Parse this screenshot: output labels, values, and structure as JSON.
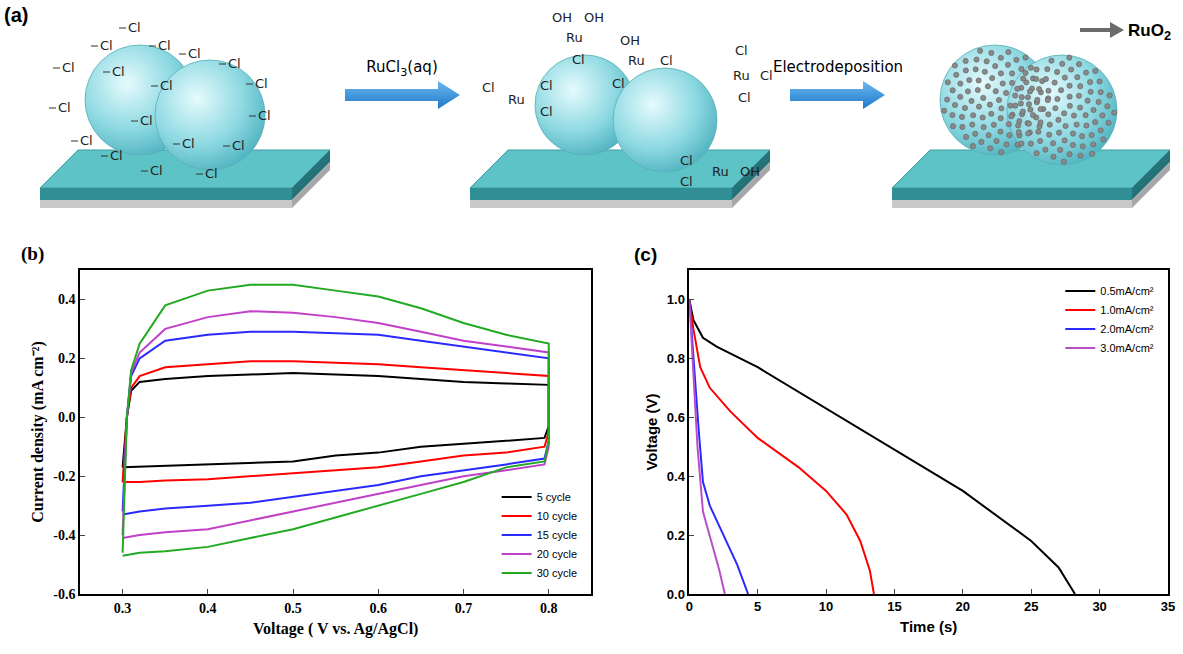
{
  "figure_a": {
    "label": "(a)",
    "stage1": {
      "labels": [
        "Cl",
        "Cl",
        "Cl",
        "Cl",
        "Cl",
        "Cl",
        "Cl",
        "Cl",
        "Cl",
        "Cl",
        "Cl",
        "Cl",
        "Cl",
        "Cl",
        "Cl",
        "Cl",
        "Cl",
        "Cl"
      ]
    },
    "stage2": {
      "labels": [
        "OH",
        "OH",
        "Ru",
        "Cl",
        "OH",
        "Ru",
        "Cl",
        "Cl",
        "Ru",
        "Cl",
        "Cl",
        "Cl",
        "Cl",
        "Ru",
        "Cl",
        "Cl",
        "Cl",
        "Cl",
        "Ru",
        "OH"
      ]
    },
    "stage3": {
      "label": "RuO2"
    },
    "arrows": [
      "RuCl3(aq)",
      "Electrodeposition"
    ]
  },
  "chart_data": [
    {
      "type": "line",
      "panel_label": "(b)",
      "x_label": "Voltage ( V vs. Ag/AgCl)",
      "y_label": "Current density (mA cm⁻²)",
      "xlim": [
        0.25,
        0.85
      ],
      "xticks": [
        0.3,
        0.4,
        0.5,
        0.6,
        0.7,
        0.8
      ],
      "ylim": [
        -0.6,
        0.5
      ],
      "yticks": [
        -0.6,
        -0.4,
        -0.2,
        {
          "value": 0,
          "label": "0.0"
        },
        0.2,
        0.4
      ],
      "grid": false,
      "legend": "bottom right",
      "series": [
        {
          "name": "5 cycle",
          "color": "#000000",
          "x": [
            0.3,
            0.305,
            0.31,
            0.32,
            0.35,
            0.4,
            0.45,
            0.5,
            0.55,
            0.6,
            0.65,
            0.7,
            0.75,
            0.8,
            0.8,
            0.795,
            0.75,
            0.7,
            0.65,
            0.6,
            0.55,
            0.5,
            0.45,
            0.4,
            0.35,
            0.32,
            0.3
          ],
          "values": [
            -0.17,
            0.0,
            0.09,
            0.12,
            0.13,
            0.14,
            0.145,
            0.15,
            0.145,
            0.14,
            0.13,
            0.12,
            0.115,
            0.11,
            -0.03,
            -0.07,
            -0.08,
            -0.09,
            -0.1,
            -0.12,
            -0.13,
            -0.15,
            -0.155,
            -0.16,
            -0.165,
            -0.17,
            -0.17
          ]
        },
        {
          "name": "10 cycle",
          "color": "#ff0000",
          "x": [
            0.3,
            0.305,
            0.31,
            0.32,
            0.35,
            0.4,
            0.45,
            0.5,
            0.55,
            0.6,
            0.65,
            0.7,
            0.75,
            0.8,
            0.8,
            0.795,
            0.75,
            0.7,
            0.65,
            0.6,
            0.55,
            0.5,
            0.45,
            0.4,
            0.35,
            0.32,
            0.3
          ],
          "values": [
            -0.22,
            0.0,
            0.1,
            0.14,
            0.17,
            0.18,
            0.19,
            0.19,
            0.185,
            0.18,
            0.17,
            0.16,
            0.15,
            0.14,
            -0.05,
            -0.1,
            -0.12,
            -0.13,
            -0.15,
            -0.17,
            -0.18,
            -0.19,
            -0.2,
            -0.21,
            -0.215,
            -0.22,
            -0.22
          ]
        },
        {
          "name": "15 cycle",
          "color": "#2a2aff",
          "x": [
            0.3,
            0.305,
            0.31,
            0.32,
            0.35,
            0.4,
            0.45,
            0.5,
            0.55,
            0.6,
            0.65,
            0.7,
            0.75,
            0.8,
            0.8,
            0.795,
            0.75,
            0.7,
            0.65,
            0.6,
            0.55,
            0.5,
            0.45,
            0.4,
            0.35,
            0.32,
            0.3
          ],
          "values": [
            -0.32,
            0.0,
            0.14,
            0.2,
            0.26,
            0.28,
            0.29,
            0.29,
            0.285,
            0.28,
            0.26,
            0.24,
            0.22,
            0.2,
            -0.08,
            -0.14,
            -0.16,
            -0.18,
            -0.2,
            -0.23,
            -0.25,
            -0.27,
            -0.29,
            -0.3,
            -0.31,
            -0.32,
            -0.33
          ]
        },
        {
          "name": "20 cycle",
          "color": "#c040c8",
          "x": [
            0.3,
            0.305,
            0.31,
            0.32,
            0.35,
            0.4,
            0.45,
            0.5,
            0.55,
            0.6,
            0.65,
            0.7,
            0.75,
            0.8,
            0.8,
            0.795,
            0.75,
            0.7,
            0.65,
            0.6,
            0.55,
            0.5,
            0.45,
            0.4,
            0.35,
            0.32,
            0.3
          ],
          "values": [
            -0.4,
            0.0,
            0.15,
            0.22,
            0.3,
            0.34,
            0.36,
            0.355,
            0.34,
            0.32,
            0.29,
            0.26,
            0.24,
            0.22,
            -0.1,
            -0.16,
            -0.18,
            -0.2,
            -0.23,
            -0.26,
            -0.29,
            -0.32,
            -0.35,
            -0.38,
            -0.39,
            -0.4,
            -0.41
          ]
        },
        {
          "name": "30 cycle",
          "color": "#22aa22",
          "x": [
            0.3,
            0.305,
            0.31,
            0.32,
            0.35,
            0.4,
            0.45,
            0.5,
            0.55,
            0.6,
            0.65,
            0.7,
            0.75,
            0.8,
            0.8,
            0.795,
            0.75,
            0.7,
            0.65,
            0.6,
            0.55,
            0.5,
            0.45,
            0.4,
            0.35,
            0.32,
            0.3
          ],
          "values": [
            -0.46,
            0.0,
            0.16,
            0.25,
            0.38,
            0.43,
            0.45,
            0.45,
            0.43,
            0.41,
            0.37,
            0.32,
            0.28,
            0.25,
            -0.08,
            -0.15,
            -0.17,
            -0.22,
            -0.26,
            -0.3,
            -0.34,
            -0.38,
            -0.41,
            -0.44,
            -0.455,
            -0.46,
            -0.47
          ]
        }
      ]
    },
    {
      "type": "line",
      "panel_label": "(c)",
      "x_label": "Time (s)",
      "y_label": "Voltage (V)",
      "xlim": [
        0,
        35
      ],
      "xticks": [
        0,
        5,
        10,
        15,
        20,
        25,
        30,
        35
      ],
      "ylim": [
        0,
        1.1
      ],
      "yticks": [
        {
          "value": 0,
          "label": "0.0"
        },
        0.2,
        0.4,
        0.6,
        0.8,
        {
          "value": 1,
          "label": "1.0"
        }
      ],
      "grid": false,
      "legend": "top right",
      "series": [
        {
          "name": "0.5mA/cm²",
          "color": "#000000",
          "x": [
            0,
            0.3,
            1,
            2,
            5,
            10,
            15,
            20,
            25,
            27,
            28.2
          ],
          "values": [
            1.0,
            0.93,
            0.87,
            0.84,
            0.77,
            0.63,
            0.49,
            0.35,
            0.18,
            0.09,
            0
          ]
        },
        {
          "name": "1.0mA/cm²",
          "color": "#ff0000",
          "x": [
            0,
            0.3,
            0.8,
            1.5,
            3,
            5,
            8,
            10,
            11.5,
            12.5,
            13.2,
            13.5
          ],
          "values": [
            1.0,
            0.9,
            0.77,
            0.7,
            0.62,
            0.53,
            0.43,
            0.35,
            0.27,
            0.18,
            0.08,
            0
          ]
        },
        {
          "name": "2.0mA/cm²",
          "color": "#2a2aff",
          "x": [
            0,
            0.3,
            0.7,
            1,
            1.5,
            2.5,
            3.5,
            4.3
          ],
          "values": [
            1.0,
            0.8,
            0.55,
            0.38,
            0.3,
            0.2,
            0.1,
            0
          ]
        },
        {
          "name": "3.0mA/cm²",
          "color": "#b94fc6",
          "x": [
            0,
            0.3,
            0.6,
            1,
            1.5,
            2.2,
            2.6
          ],
          "values": [
            1.0,
            0.75,
            0.5,
            0.28,
            0.2,
            0.08,
            0
          ]
        }
      ]
    }
  ]
}
